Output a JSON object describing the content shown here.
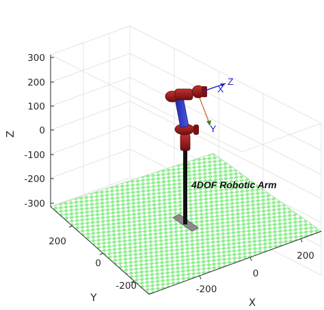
{
  "figure": {
    "annotation": "4DOF Robotic Arm",
    "axes": {
      "x_label": "X",
      "y_label": "Y",
      "z_label": "Z",
      "z_ticks": [
        "300",
        "200",
        "100",
        "0",
        "-100",
        "-200",
        "-300"
      ],
      "y_ticks": [
        "200",
        "0",
        "-200"
      ],
      "x_ticks": [
        "200",
        "0",
        "-200"
      ],
      "grid": true
    },
    "end_effector_frame": {
      "x_label": "X",
      "y_label": "Y",
      "z_label": "Z"
    },
    "colors": {
      "floor_green": "#90ee90",
      "floor_white": "#ffffff",
      "links_dark_red": "#8b1a1a",
      "links_blue": "#2b36c6",
      "base_post": "#111111",
      "base_plate": "#808080",
      "frame_x": "#cc2222",
      "frame_y": "#2a8a2a",
      "frame_z": "#2222cc"
    }
  }
}
